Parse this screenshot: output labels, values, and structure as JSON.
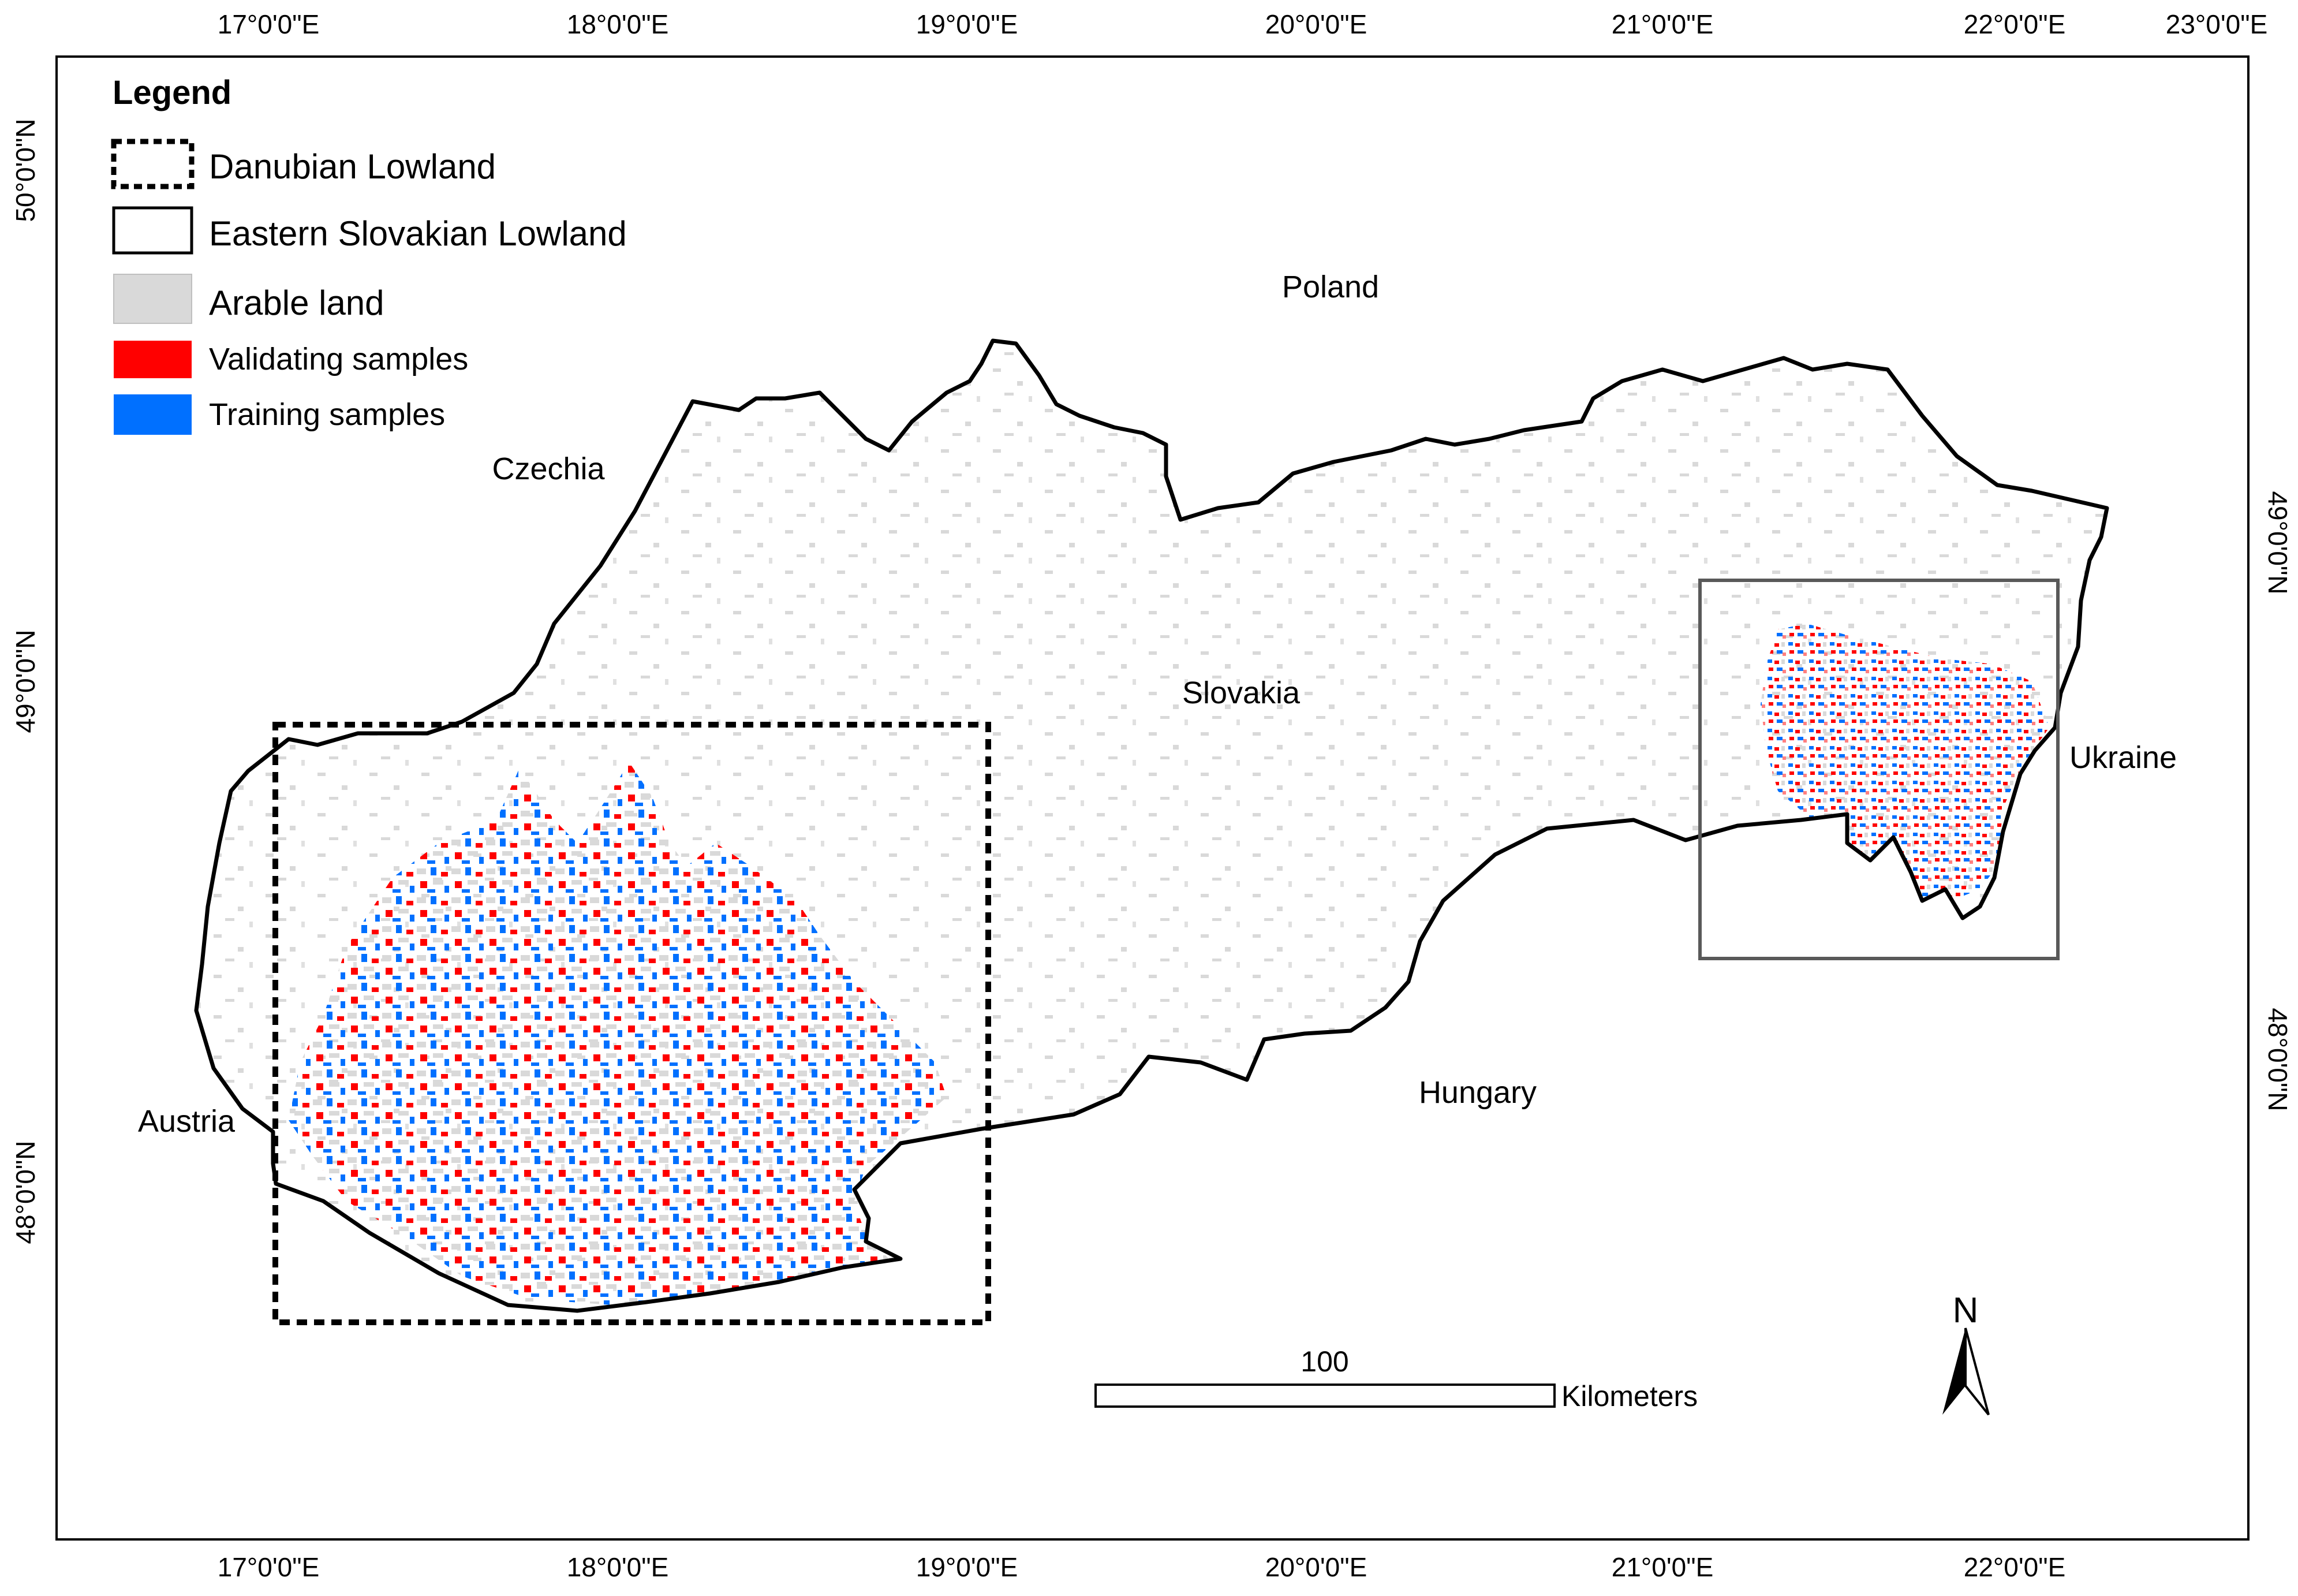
{
  "top_lon_labels": [
    "17°0'0\"E",
    "18°0'0\"E",
    "19°0'0\"E",
    "20°0'0\"E",
    "21°0'0\"E",
    "22°0'0\"E",
    "23°0'0\"E"
  ],
  "bottom_lon_labels": [
    "17°0'0\"E",
    "18°0'0\"E",
    "19°0'0\"E",
    "20°0'0\"E",
    "21°0'0\"E",
    "22°0'0\"E"
  ],
  "left_lat_labels": [
    "50°0'0\"N",
    "49°0'0\"N",
    "48°0'0\"N"
  ],
  "right_lat_labels": [
    "49°0'0\"N",
    "48°0'0\"N"
  ],
  "legend": {
    "title": "Legend",
    "items": [
      {
        "label": "Danubian Lowland",
        "symbol": "dashed-box"
      },
      {
        "label": "Eastern Slovakian Lowland",
        "symbol": "solid-box"
      },
      {
        "label": "Arable land",
        "symbol": "fill",
        "color": "#d9d9d9"
      },
      {
        "label": "Validating samples",
        "symbol": "fill",
        "color": "#ff0000"
      },
      {
        "label": "Training samples",
        "symbol": "fill",
        "color": "#0070ff"
      }
    ]
  },
  "countries": {
    "poland": "Poland",
    "czechia": "Czechia",
    "slovakia": "Slovakia",
    "ukraine": "Ukraine",
    "austria": "Austria",
    "hungary": "Hungary"
  },
  "scale_bar": {
    "value": "100",
    "unit": "Kilometers"
  },
  "north_arrow": {
    "label": "N"
  },
  "colors": {
    "arable": "#d9d9d9",
    "validating": "#ff0000",
    "training": "#0070ff",
    "boundary": "#000000",
    "eastern_box": "#595959"
  }
}
